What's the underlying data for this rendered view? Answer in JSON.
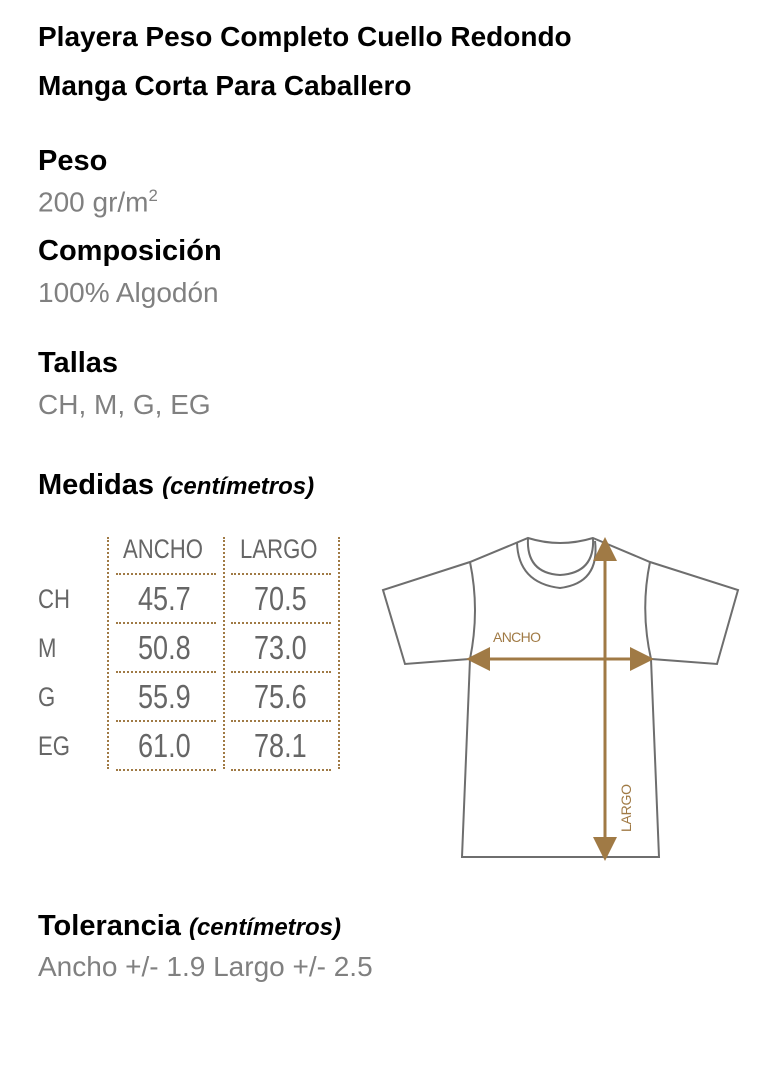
{
  "title_line1": "Playera Peso Completo Cuello Redondo",
  "title_line2": "Manga Corta Para Caballero",
  "peso": {
    "label": "Peso",
    "value": "200 gr/m",
    "sup": "2"
  },
  "composicion": {
    "label": "Composición",
    "value": "100% Algodón"
  },
  "tallas": {
    "label": "Tallas",
    "value": "CH, M, G, EG"
  },
  "medidas": {
    "label": "Medidas",
    "unit": "(centímetros)"
  },
  "table": {
    "headers": [
      "ANCHO",
      "LARGO"
    ],
    "rows": [
      {
        "size": "CH",
        "ancho": "45.7",
        "largo": "70.5"
      },
      {
        "size": "M",
        "ancho": "50.8",
        "largo": "73.0"
      },
      {
        "size": "G",
        "ancho": "55.9",
        "largo": "75.6"
      },
      {
        "size": "EG",
        "ancho": "61.0",
        "largo": "78.1"
      }
    ]
  },
  "diagram": {
    "ancho_label": "ANCHO",
    "largo_label": "LARGO",
    "accent": "#a07a45",
    "outline": "#6e6e6e"
  },
  "tolerancia": {
    "label": "Tolerancia",
    "unit": "(centímetros)",
    "value": "Ancho +/- 1.9 Largo +/- 2.5"
  }
}
